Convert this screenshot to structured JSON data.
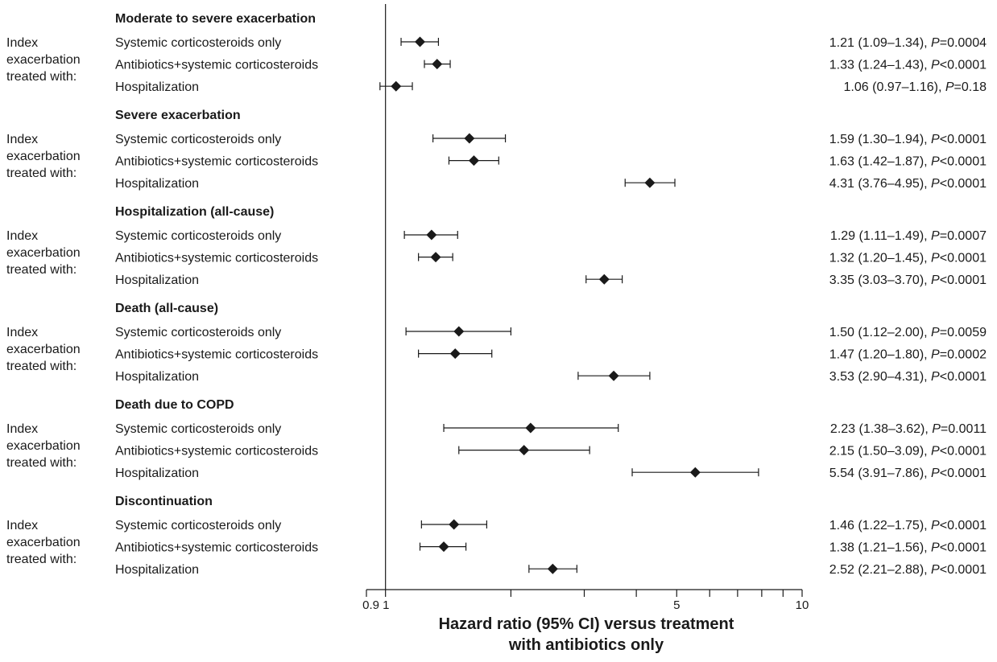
{
  "chart_data": {
    "type": "forest",
    "xscale": "log",
    "xlim": [
      0.9,
      10
    ],
    "xticks": [
      {
        "value": 0.9,
        "label": "0.9"
      },
      {
        "value": 1,
        "label": "1"
      },
      {
        "value": 2,
        "label": ""
      },
      {
        "value": 3,
        "label": ""
      },
      {
        "value": 4,
        "label": ""
      },
      {
        "value": 5,
        "label": "5"
      },
      {
        "value": 6,
        "label": ""
      },
      {
        "value": 7,
        "label": ""
      },
      {
        "value": 8,
        "label": ""
      },
      {
        "value": 9,
        "label": ""
      },
      {
        "value": 10,
        "label": "10"
      }
    ],
    "reference_line": 1,
    "xlabel": [
      "Hazard ratio (95% CI) versus treatment",
      "with antibiotics only"
    ],
    "side_label": [
      "Index",
      "exacerbation",
      "treated with:"
    ],
    "groups": [
      {
        "title": "Moderate to severe exacerbation",
        "rows": [
          {
            "label": "Systemic corticosteroids only",
            "hr": 1.21,
            "lo": 1.09,
            "hi": 1.34,
            "text_ci": "1.21 (1.09–1.34), ",
            "p_label": "P",
            "p_text": "=0.0004"
          },
          {
            "label": "Antibiotics+systemic corticosteroids",
            "hr": 1.33,
            "lo": 1.24,
            "hi": 1.43,
            "text_ci": "1.33 (1.24–1.43), ",
            "p_label": "P",
            "p_text": "<0.0001"
          },
          {
            "label": "Hospitalization",
            "hr": 1.06,
            "lo": 0.97,
            "hi": 1.16,
            "text_ci": "1.06 (0.97–1.16), ",
            "p_label": "P",
            "p_text": "=0.18"
          }
        ]
      },
      {
        "title": "Severe exacerbation",
        "rows": [
          {
            "label": "Systemic corticosteroids only",
            "hr": 1.59,
            "lo": 1.3,
            "hi": 1.94,
            "text_ci": "1.59 (1.30–1.94), ",
            "p_label": "P",
            "p_text": "<0.0001"
          },
          {
            "label": "Antibiotics+systemic corticosteroids",
            "hr": 1.63,
            "lo": 1.42,
            "hi": 1.87,
            "text_ci": "1.63 (1.42–1.87), ",
            "p_label": "P",
            "p_text": "<0.0001"
          },
          {
            "label": "Hospitalization",
            "hr": 4.31,
            "lo": 3.76,
            "hi": 4.95,
            "text_ci": "4.31 (3.76–4.95), ",
            "p_label": "P",
            "p_text": "<0.0001"
          }
        ]
      },
      {
        "title": "Hospitalization (all-cause)",
        "rows": [
          {
            "label": "Systemic corticosteroids only",
            "hr": 1.29,
            "lo": 1.11,
            "hi": 1.49,
            "text_ci": "1.29 (1.11–1.49), ",
            "p_label": "P",
            "p_text": "=0.0007"
          },
          {
            "label": "Antibiotics+systemic corticosteroids",
            "hr": 1.32,
            "lo": 1.2,
            "hi": 1.45,
            "text_ci": "1.32 (1.20–1.45), ",
            "p_label": "P",
            "p_text": "<0.0001"
          },
          {
            "label": "Hospitalization",
            "hr": 3.35,
            "lo": 3.03,
            "hi": 3.7,
            "text_ci": "3.35 (3.03–3.70), ",
            "p_label": "P",
            "p_text": "<0.0001"
          }
        ]
      },
      {
        "title": "Death (all-cause)",
        "rows": [
          {
            "label": "Systemic corticosteroids only",
            "hr": 1.5,
            "lo": 1.12,
            "hi": 2.0,
            "text_ci": "1.50 (1.12–2.00), ",
            "p_label": "P",
            "p_text": "=0.0059"
          },
          {
            "label": "Antibiotics+systemic corticosteroids",
            "hr": 1.47,
            "lo": 1.2,
            "hi": 1.8,
            "text_ci": "1.47 (1.20–1.80), ",
            "p_label": "P",
            "p_text": "=0.0002"
          },
          {
            "label": "Hospitalization",
            "hr": 3.53,
            "lo": 2.9,
            "hi": 4.31,
            "text_ci": "3.53 (2.90–4.31), ",
            "p_label": "P",
            "p_text": "<0.0001"
          }
        ]
      },
      {
        "title": "Death due to COPD",
        "rows": [
          {
            "label": "Systemic corticosteroids only",
            "hr": 2.23,
            "lo": 1.38,
            "hi": 3.62,
            "text_ci": "2.23 (1.38–3.62), ",
            "p_label": "P",
            "p_text": "=0.0011"
          },
          {
            "label": "Antibiotics+systemic corticosteroids",
            "hr": 2.15,
            "lo": 1.5,
            "hi": 3.09,
            "text_ci": "2.15 (1.50–3.09), ",
            "p_label": "P",
            "p_text": "<0.0001"
          },
          {
            "label": "Hospitalization",
            "hr": 5.54,
            "lo": 3.91,
            "hi": 7.86,
            "text_ci": "5.54 (3.91–7.86), ",
            "p_label": "P",
            "p_text": "<0.0001"
          }
        ]
      },
      {
        "title": "Discontinuation",
        "rows": [
          {
            "label": "Systemic corticosteroids only",
            "hr": 1.46,
            "lo": 1.22,
            "hi": 1.75,
            "text_ci": "1.46 (1.22–1.75), ",
            "p_label": "P",
            "p_text": "<0.0001"
          },
          {
            "label": "Antibiotics+systemic corticosteroids",
            "hr": 1.38,
            "lo": 1.21,
            "hi": 1.56,
            "text_ci": "1.38 (1.21–1.56), ",
            "p_label": "P",
            "p_text": "<0.0001"
          },
          {
            "label": "Hospitalization",
            "hr": 2.52,
            "lo": 2.21,
            "hi": 2.88,
            "text_ci": "2.52 (2.21–2.88), ",
            "p_label": "P",
            "p_text": "<0.0001"
          }
        ]
      }
    ],
    "colors": {
      "marker": "#1a1a1a",
      "line": "#1a1a1a",
      "text": "#1a1a1a"
    },
    "marker_shape": "diamond",
    "grid": false
  }
}
